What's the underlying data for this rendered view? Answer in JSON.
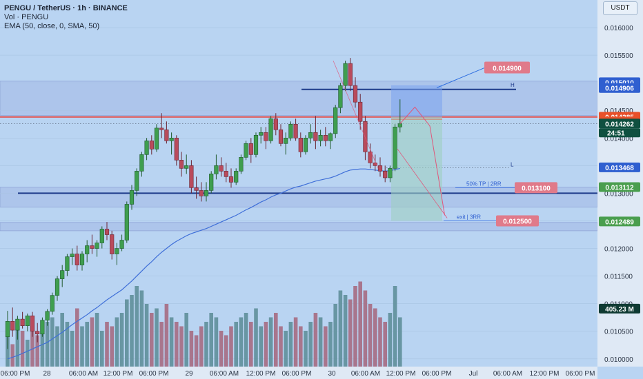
{
  "header": {
    "symbol": "PENGU / TetherUS · 1h · BINANCE",
    "volume": "Vol · PENGU",
    "ema": "EMA (50, close, 0, SMA, 50)"
  },
  "currency_button": "USDT",
  "colors": {
    "background": "#b9d4f2",
    "up": "#3f9e4f",
    "down": "#b94b5c",
    "ema": "#3f6fd8",
    "resistance": "#e8352c",
    "level": "#1d3a8a"
  },
  "chart_data": {
    "type": "candlestick",
    "ylim": [
      0.00996,
      0.01625
    ],
    "y_ticks": [
      "0.016000",
      "0.015500",
      "0.015000",
      "0.014500",
      "0.014000",
      "0.013500",
      "0.013000",
      "0.012500",
      "0.012000",
      "0.011500",
      "0.011000",
      "0.010500",
      "0.010000"
    ],
    "y_tick_values": [
      0.016,
      0.0155,
      0.015,
      0.0145,
      0.014,
      0.0135,
      0.013,
      0.0125,
      0.012,
      0.0115,
      0.011,
      0.0105,
      0.01
    ],
    "x_ticks": [
      "06:00 PM",
      "28",
      "06:00 AM",
      "12:00 PM",
      "06:00 PM",
      "29",
      "06:00 AM",
      "12:00 PM",
      "06:00 PM",
      "30",
      "06:00 AM",
      "12:00 PM",
      "06:00 PM",
      "Jul",
      "06:00 AM",
      "12:00 PM",
      "06:00 PM"
    ],
    "ohlc": [
      [
        0.0104,
        0.01087,
        0.01018,
        0.01068
      ],
      [
        0.01068,
        0.01093,
        0.0104,
        0.01052
      ],
      [
        0.01052,
        0.01078,
        0.01035,
        0.01072
      ],
      [
        0.01072,
        0.01085,
        0.01055,
        0.0106
      ],
      [
        0.0106,
        0.01082,
        0.0105,
        0.01078
      ],
      [
        0.01078,
        0.01085,
        0.0104,
        0.0105
      ],
      [
        0.0105,
        0.01065,
        0.0103,
        0.01045
      ],
      [
        0.01045,
        0.01075,
        0.0104,
        0.0107
      ],
      [
        0.0107,
        0.0109,
        0.0106,
        0.01086
      ],
      [
        0.01086,
        0.0112,
        0.0108,
        0.01115
      ],
      [
        0.01115,
        0.0115,
        0.01105,
        0.01145
      ],
      [
        0.01145,
        0.0117,
        0.0113,
        0.0116
      ],
      [
        0.0116,
        0.0119,
        0.0115,
        0.01185
      ],
      [
        0.01185,
        0.012,
        0.0117,
        0.0119
      ],
      [
        0.0119,
        0.01205,
        0.0116,
        0.0117
      ],
      [
        0.0117,
        0.01195,
        0.0116,
        0.0119
      ],
      [
        0.0119,
        0.01215,
        0.01175,
        0.01205
      ],
      [
        0.01205,
        0.01225,
        0.0119,
        0.012
      ],
      [
        0.012,
        0.01215,
        0.01185,
        0.0121
      ],
      [
        0.0121,
        0.0124,
        0.012,
        0.01235
      ],
      [
        0.01235,
        0.01248,
        0.01215,
        0.01225
      ],
      [
        0.01225,
        0.01232,
        0.0118,
        0.0119
      ],
      [
        0.0119,
        0.0121,
        0.0117,
        0.012
      ],
      [
        0.012,
        0.01225,
        0.01195,
        0.01215
      ],
      [
        0.01215,
        0.01285,
        0.0121,
        0.0128
      ],
      [
        0.0128,
        0.01315,
        0.0127,
        0.01305
      ],
      [
        0.01305,
        0.01345,
        0.01295,
        0.0134
      ],
      [
        0.0134,
        0.01375,
        0.0133,
        0.0137
      ],
      [
        0.0137,
        0.014,
        0.0136,
        0.01395
      ],
      [
        0.01395,
        0.01405,
        0.0137,
        0.0138
      ],
      [
        0.0138,
        0.01425,
        0.01375,
        0.01418
      ],
      [
        0.01418,
        0.01445,
        0.014,
        0.01415
      ],
      [
        0.01415,
        0.0143,
        0.0139,
        0.01395
      ],
      [
        0.01395,
        0.0141,
        0.0137,
        0.014
      ],
      [
        0.014,
        0.01405,
        0.0135,
        0.0136
      ],
      [
        0.0136,
        0.01375,
        0.0133,
        0.01345
      ],
      [
        0.01345,
        0.0137,
        0.01335,
        0.0135
      ],
      [
        0.0135,
        0.0136,
        0.013,
        0.0131
      ],
      [
        0.0131,
        0.0133,
        0.0129,
        0.01305
      ],
      [
        0.01305,
        0.0132,
        0.01285,
        0.01295
      ],
      [
        0.01295,
        0.0132,
        0.01285,
        0.01305
      ],
      [
        0.01305,
        0.0134,
        0.013,
        0.01335
      ],
      [
        0.01335,
        0.0137,
        0.01325,
        0.0135
      ],
      [
        0.0135,
        0.01365,
        0.0133,
        0.0134
      ],
      [
        0.0134,
        0.01355,
        0.0132,
        0.0133
      ],
      [
        0.0133,
        0.01345,
        0.0131,
        0.0132
      ],
      [
        0.0132,
        0.01345,
        0.01315,
        0.0134
      ],
      [
        0.0134,
        0.0137,
        0.01335,
        0.01365
      ],
      [
        0.01365,
        0.01395,
        0.0136,
        0.0139
      ],
      [
        0.0139,
        0.014,
        0.01355,
        0.0137
      ],
      [
        0.0137,
        0.0141,
        0.01365,
        0.01405
      ],
      [
        0.01405,
        0.0142,
        0.0139,
        0.0141
      ],
      [
        0.0141,
        0.0142,
        0.0138,
        0.01395
      ],
      [
        0.01395,
        0.0144,
        0.0139,
        0.01435
      ],
      [
        0.01435,
        0.01445,
        0.01405,
        0.01415
      ],
      [
        0.01415,
        0.01425,
        0.01385,
        0.0139
      ],
      [
        0.0139,
        0.0141,
        0.0137,
        0.014
      ],
      [
        0.014,
        0.0143,
        0.01395,
        0.01425
      ],
      [
        0.01425,
        0.01435,
        0.01395,
        0.014
      ],
      [
        0.014,
        0.0141,
        0.01365,
        0.01375
      ],
      [
        0.01375,
        0.01405,
        0.0137,
        0.014
      ],
      [
        0.014,
        0.01425,
        0.0139,
        0.0141
      ],
      [
        0.0141,
        0.0144,
        0.0138,
        0.01395
      ],
      [
        0.01395,
        0.01415,
        0.01385,
        0.01405
      ],
      [
        0.01405,
        0.0142,
        0.01385,
        0.01395
      ],
      [
        0.01395,
        0.0141,
        0.0138,
        0.01408
      ],
      [
        0.01408,
        0.0146,
        0.014,
        0.01455
      ],
      [
        0.01455,
        0.015,
        0.01445,
        0.01495
      ],
      [
        0.01495,
        0.0154,
        0.01485,
        0.01535
      ],
      [
        0.01535,
        0.01545,
        0.01485,
        0.01495
      ],
      [
        0.01495,
        0.0151,
        0.01455,
        0.01465
      ],
      [
        0.01465,
        0.0148,
        0.01415,
        0.0143
      ],
      [
        0.0143,
        0.0144,
        0.0136,
        0.01375
      ],
      [
        0.01375,
        0.0139,
        0.01345,
        0.01355
      ],
      [
        0.01355,
        0.0137,
        0.0134,
        0.0135
      ],
      [
        0.0135,
        0.01365,
        0.0133,
        0.0134
      ],
      [
        0.0134,
        0.0135,
        0.0132,
        0.01328
      ],
      [
        0.01328,
        0.0135,
        0.0132,
        0.01345
      ],
      [
        0.01345,
        0.01425,
        0.0134,
        0.0142
      ],
      [
        0.0142,
        0.0147,
        0.0141,
        0.01426
      ]
    ],
    "volume_scale": [
      0.45,
      0.25,
      0.5,
      0.4,
      0.3,
      0.55,
      0.35,
      0.4,
      0.5,
      0.55,
      0.45,
      0.6,
      0.5,
      0.4,
      0.65,
      0.45,
      0.5,
      0.55,
      0.6,
      0.4,
      0.5,
      0.45,
      0.55,
      0.6,
      0.75,
      0.8,
      0.9,
      0.85,
      0.7,
      0.6,
      0.65,
      0.5,
      0.7,
      0.55,
      0.5,
      0.45,
      0.6,
      0.4,
      0.35,
      0.45,
      0.5,
      0.6,
      0.55,
      0.4,
      0.35,
      0.45,
      0.5,
      0.55,
      0.6,
      0.5,
      0.65,
      0.45,
      0.5,
      0.55,
      0.6,
      0.45,
      0.4,
      0.5,
      0.55,
      0.45,
      0.4,
      0.5,
      0.6,
      0.55,
      0.45,
      0.5,
      0.7,
      0.85,
      0.8,
      0.75,
      0.9,
      0.95,
      0.85,
      0.7,
      0.65,
      0.55,
      0.5,
      0.6,
      0.9,
      0.55
    ],
    "ema": [
      0.01,
      0.01003,
      0.01006,
      0.0101,
      0.01014,
      0.01018,
      0.01022,
      0.01026,
      0.0103,
      0.01036,
      0.01042,
      0.01048,
      0.01055,
      0.01062,
      0.01068,
      0.01074,
      0.0108,
      0.01087,
      0.01093,
      0.011,
      0.01107,
      0.01113,
      0.01119,
      0.01125,
      0.01133,
      0.01141,
      0.0115,
      0.01159,
      0.01168,
      0.01176,
      0.01185,
      0.01193,
      0.012,
      0.01207,
      0.01213,
      0.01218,
      0.01223,
      0.01227,
      0.0123,
      0.01233,
      0.01236,
      0.0124,
      0.01244,
      0.01248,
      0.01252,
      0.01256,
      0.0126,
      0.01265,
      0.0127,
      0.01274,
      0.01279,
      0.01284,
      0.01288,
      0.01293,
      0.01297,
      0.013,
      0.01304,
      0.01308,
      0.01311,
      0.01313,
      0.01316,
      0.01319,
      0.01322,
      0.01324,
      0.01326,
      0.01328,
      0.01331,
      0.01335,
      0.01339,
      0.01342,
      0.01343,
      0.01344,
      0.01344,
      0.01343,
      0.01342,
      0.01341,
      0.0134,
      0.01341,
      0.01343,
      0.01345
    ],
    "levels": {
      "resistance": 0.01438,
      "upper_blue": 0.01488,
      "lower_blue": 0.013,
      "dotted_current": 0.01426,
      "dotted_ema": 0.01346
    },
    "zones": [
      {
        "from": 0.01503,
        "to": 0.01441
      },
      {
        "from": 0.01311,
        "to": 0.01275
      },
      {
        "from": 0.01247,
        "to": 0.01232
      }
    ],
    "projection": {
      "path": [
        [
          79,
          0.01426
        ],
        [
          82,
          0.01456
        ],
        [
          85,
          0.01422
        ],
        [
          88,
          0.0126
        ]
      ],
      "arrow": [
        [
          81,
          0.0144
        ],
        [
          85,
          0.01445
        ]
      ]
    },
    "position": {
      "entry": 0.01438,
      "stop": 0.01488,
      "target": 0.0125
    },
    "axis_labels": [
      {
        "value": 0.01501,
        "text": "0.015010",
        "bg": "#2f5fd0",
        "fg": "#ffffff"
      },
      {
        "value": 0.014906,
        "text": "0.014906",
        "bg": "#2f5fd0",
        "fg": "#ffffff"
      },
      {
        "value": 0.014385,
        "text": "0.014385",
        "bg": "#e8502a",
        "fg": "#ffffff"
      },
      {
        "value": 0.014299,
        "text": "0.014299",
        "bg": "#e8502a",
        "fg": "#ffffff"
      },
      {
        "value": 0.014262,
        "text": "0.014262",
        "bg": "#0f5040",
        "fg": "#ffffff"
      },
      {
        "value": 0.013468,
        "text": "0.013468",
        "bg": "#2f5fd0",
        "fg": "#ffffff"
      },
      {
        "value": 0.013112,
        "text": "0.013112",
        "bg": "#4a9e4e",
        "fg": "#ffffff"
      },
      {
        "value": 0.012489,
        "text": "0.012489",
        "bg": "#4a9e4e",
        "fg": "#ffffff"
      }
    ],
    "countdown": "24:51",
    "volume_label": "405.23 M",
    "annotations": {
      "price_top": "0.014900",
      "tp_text": "50% TP | 2RR",
      "tp_price": "0.013100",
      "exit_text": "exit | 3RR",
      "exit_price": "0.012500",
      "h": "H",
      "l": "L"
    }
  }
}
